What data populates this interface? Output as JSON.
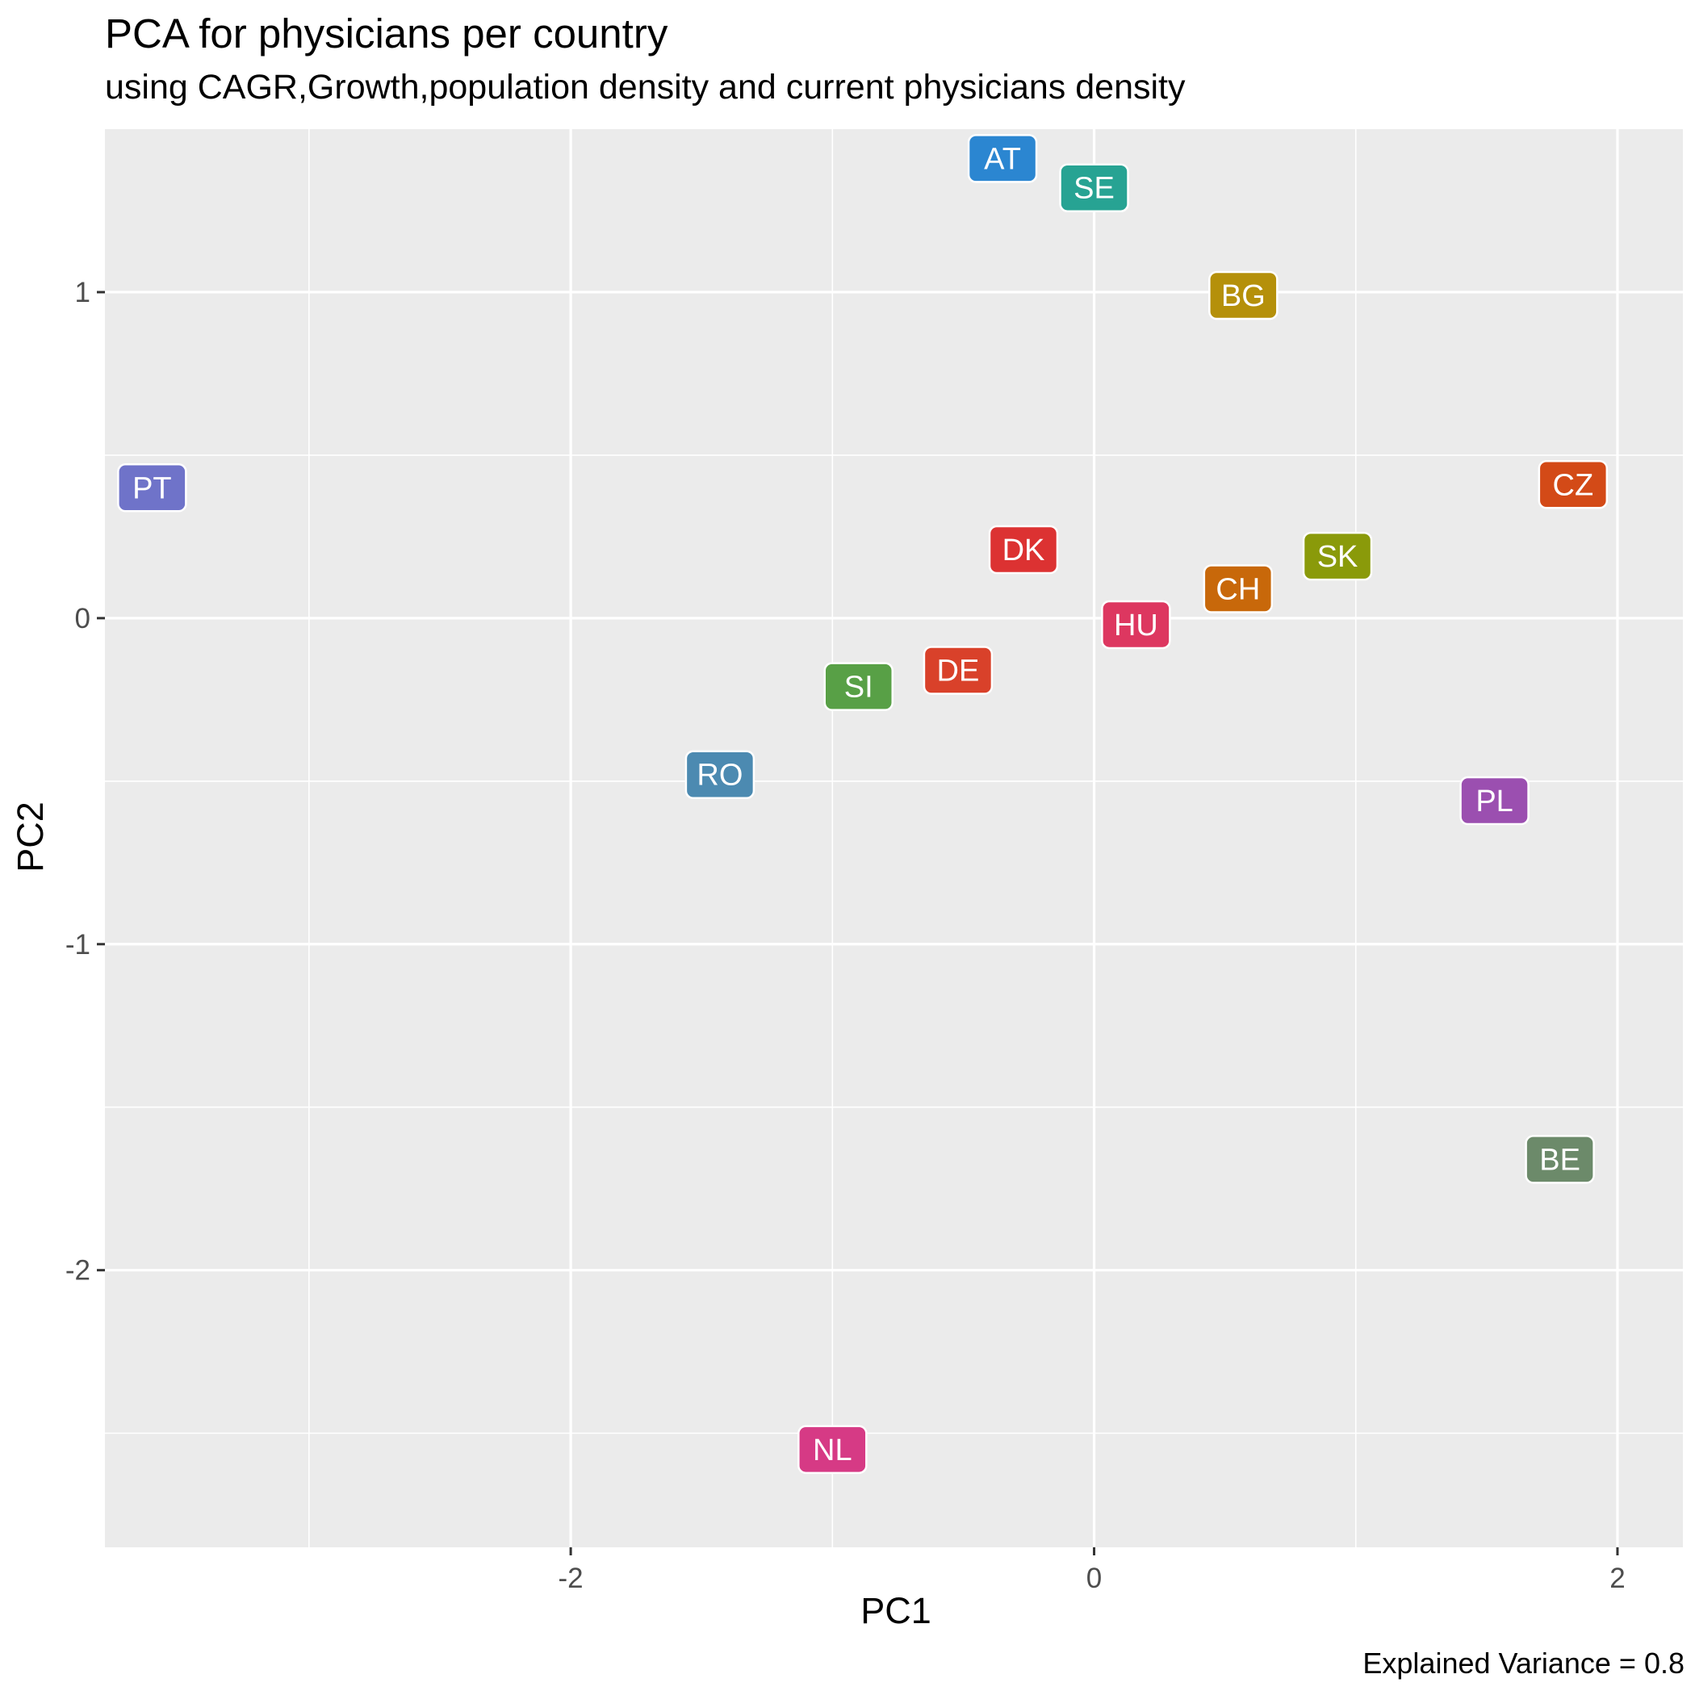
{
  "chart_data": {
    "type": "scatter",
    "title": "PCA for  physicians per country",
    "subtitle": "using CAGR,Growth,population density and current physicians density",
    "xlabel": "PC1",
    "ylabel": "PC2",
    "caption": "Explained Variance = 0.8",
    "xlim": [
      -3.78,
      2.25
    ],
    "ylim": [
      -2.85,
      1.5
    ],
    "xticks": [
      -2,
      0,
      2
    ],
    "xtick_labels": [
      "-2",
      "0",
      "2"
    ],
    "yticks": [
      -2,
      -1,
      0,
      1
    ],
    "ytick_labels": [
      "-2",
      "-1",
      "0",
      "1"
    ],
    "grid": true,
    "legend": "none",
    "points": [
      {
        "label": "AT",
        "x": -0.35,
        "y": 1.41,
        "color": "#2B86D1"
      },
      {
        "label": "SE",
        "x": 0.0,
        "y": 1.32,
        "color": "#27A393"
      },
      {
        "label": "BG",
        "x": 0.57,
        "y": 0.99,
        "color": "#B5900A"
      },
      {
        "label": "PT",
        "x": -3.6,
        "y": 0.4,
        "color": "#6F73C9"
      },
      {
        "label": "CZ",
        "x": 1.83,
        "y": 0.41,
        "color": "#D34A17"
      },
      {
        "label": "DK",
        "x": -0.27,
        "y": 0.21,
        "color": "#DC3232"
      },
      {
        "label": "SK",
        "x": 0.93,
        "y": 0.19,
        "color": "#8A9A0A"
      },
      {
        "label": "CH",
        "x": 0.55,
        "y": 0.09,
        "color": "#C8680A"
      },
      {
        "label": "HU",
        "x": 0.16,
        "y": -0.02,
        "color": "#DD3760"
      },
      {
        "label": "DE",
        "x": -0.52,
        "y": -0.16,
        "color": "#D9412A"
      },
      {
        "label": "SI",
        "x": -0.9,
        "y": -0.21,
        "color": "#58A046"
      },
      {
        "label": "RO",
        "x": -1.43,
        "y": -0.48,
        "color": "#4C8AB1"
      },
      {
        "label": "PL",
        "x": 1.53,
        "y": -0.56,
        "color": "#9B4FB0"
      },
      {
        "label": "BE",
        "x": 1.78,
        "y": -1.66,
        "color": "#6C8A6A"
      },
      {
        "label": "NL",
        "x": -1.0,
        "y": -2.55,
        "color": "#D63A85"
      }
    ]
  }
}
